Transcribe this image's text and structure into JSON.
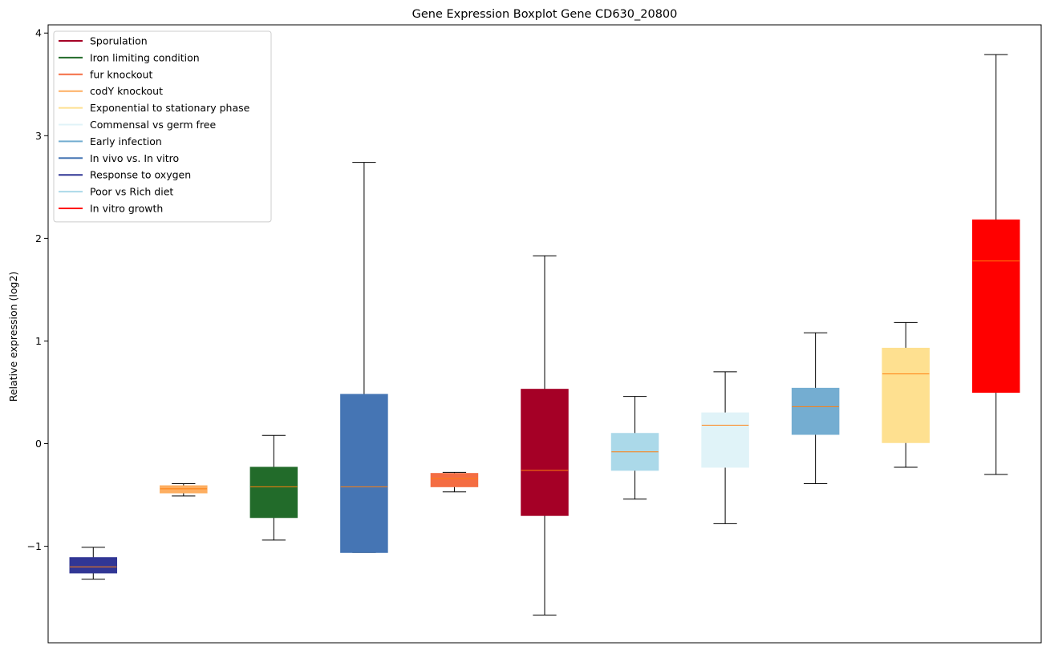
{
  "chart_data": {
    "type": "boxplot",
    "title": "Gene Expression Boxplot Gene CD630_20800",
    "xlabel": "",
    "ylabel": "Relative expression (log2)",
    "ylim": [
      -1.94,
      4.08
    ],
    "yticks": [
      -1,
      0,
      1,
      2,
      3,
      4
    ],
    "yticklabels": [
      "−1",
      "0",
      "1",
      "2",
      "3",
      "4"
    ],
    "legend_position": "top-left",
    "legend": [
      {
        "label": "Sporulation",
        "color": "#a50026"
      },
      {
        "label": "Iron limiting condition",
        "color": "#226b2a"
      },
      {
        "label": "fur knockout",
        "color": "#f46d43"
      },
      {
        "label": "codY knockout",
        "color": "#fdae61"
      },
      {
        "label": "Exponential to stationary phase",
        "color": "#fee090"
      },
      {
        "label": "Commensal vs germ free",
        "color": "#e0f3f8"
      },
      {
        "label": "Early infection",
        "color": "#74add1"
      },
      {
        "label": "In vivo vs. In vitro",
        "color": "#4575b4"
      },
      {
        "label": "Response to oxygen",
        "color": "#313695"
      },
      {
        "label": "Poor vs Rich diet",
        "color": "#abd9e9"
      },
      {
        "label": "In vitro growth",
        "color": "#ff0000"
      }
    ],
    "median_color": "#ff7f0e",
    "boxes": [
      {
        "condition": "Response to oxygen",
        "color": "#313695",
        "whisker_low": -1.32,
        "q1": -1.26,
        "median": -1.2,
        "q3": -1.11,
        "whisker_high": -1.01
      },
      {
        "condition": "codY knockout",
        "color": "#fdae61",
        "whisker_low": -0.51,
        "q1": -0.48,
        "median": -0.44,
        "q3": -0.41,
        "whisker_high": -0.39
      },
      {
        "condition": "Iron limiting condition",
        "color": "#226b2a",
        "whisker_low": -0.94,
        "q1": -0.72,
        "median": -0.42,
        "q3": -0.23,
        "whisker_high": 0.08
      },
      {
        "condition": "In vivo vs. In vitro",
        "color": "#4575b4",
        "whisker_low": -1.06,
        "q1": -1.06,
        "median": -0.42,
        "q3": 0.48,
        "whisker_high": 2.74
      },
      {
        "condition": "fur knockout",
        "color": "#f46d43",
        "whisker_low": -0.47,
        "q1": -0.42,
        "median": -0.34,
        "q3": -0.29,
        "whisker_high": -0.28
      },
      {
        "condition": "Sporulation",
        "color": "#a50026",
        "whisker_low": -1.67,
        "q1": -0.7,
        "median": -0.26,
        "q3": 0.53,
        "whisker_high": 1.83
      },
      {
        "condition": "Poor vs Rich diet",
        "color": "#abd9e9",
        "whisker_low": -0.54,
        "q1": -0.26,
        "median": -0.08,
        "q3": 0.1,
        "whisker_high": 0.46
      },
      {
        "condition": "Commensal vs germ free",
        "color": "#e0f3f8",
        "whisker_low": -0.78,
        "q1": -0.23,
        "median": 0.18,
        "q3": 0.3,
        "whisker_high": 0.7
      },
      {
        "condition": "Early infection",
        "color": "#74add1",
        "whisker_low": -0.39,
        "q1": 0.09,
        "median": 0.36,
        "q3": 0.54,
        "whisker_high": 1.08
      },
      {
        "condition": "Exponential to stationary phase",
        "color": "#fee090",
        "whisker_low": -0.23,
        "q1": 0.01,
        "median": 0.68,
        "q3": 0.93,
        "whisker_high": 1.18
      },
      {
        "condition": "In vitro growth",
        "color": "#ff0000",
        "whisker_low": -0.3,
        "q1": 0.5,
        "median": 1.78,
        "q3": 2.18,
        "whisker_high": 3.79
      }
    ]
  }
}
